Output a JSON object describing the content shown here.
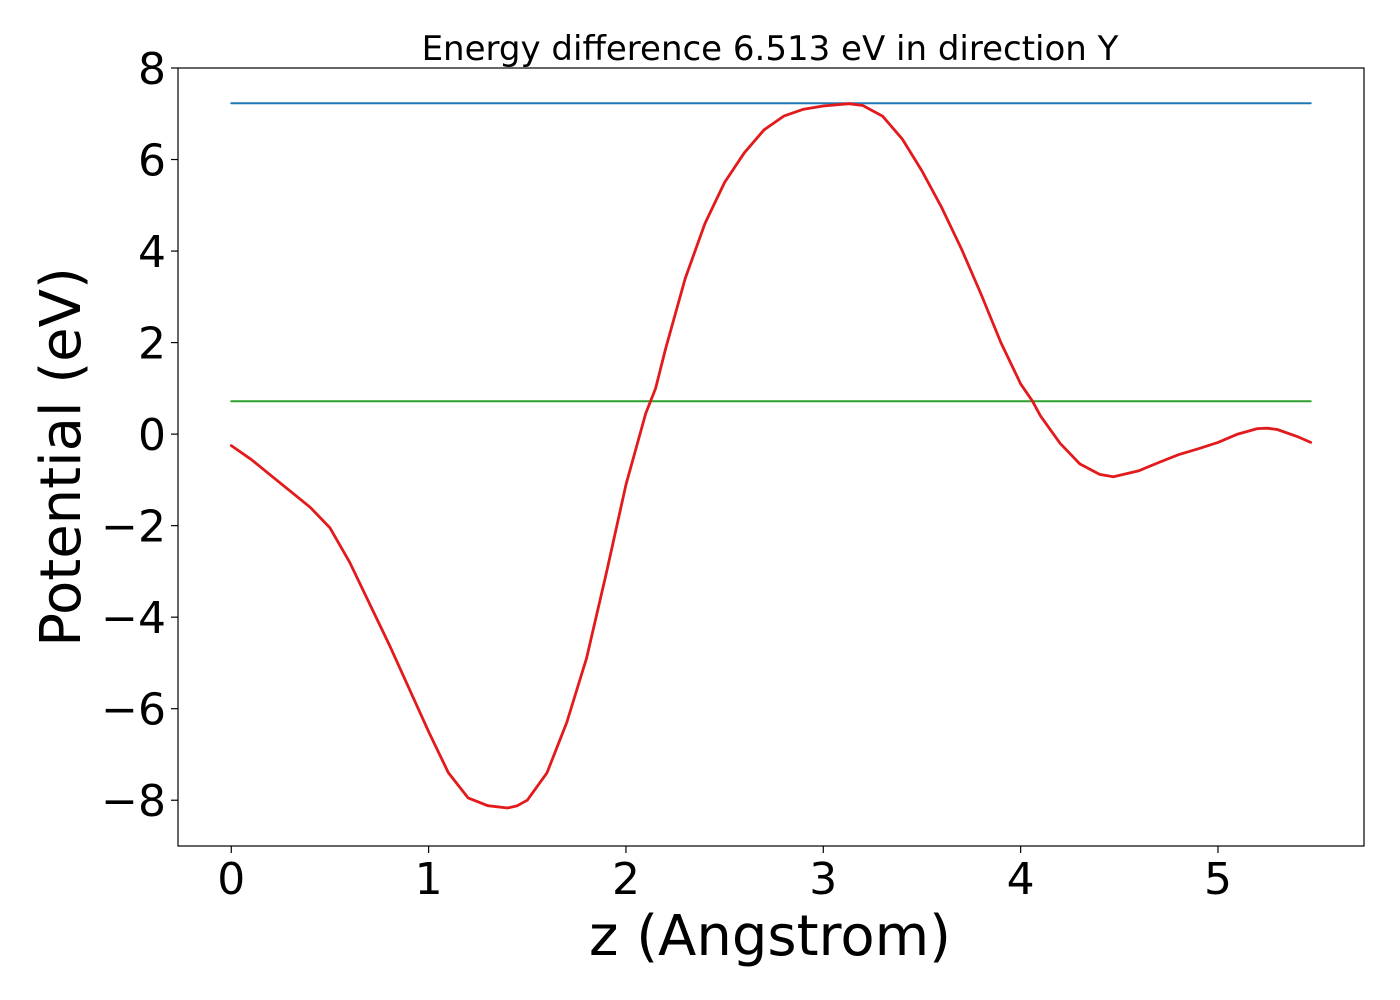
{
  "chart_data": {
    "type": "line",
    "title": "Energy difference 6.513 eV in direction Y",
    "xlabel": "z (Angstrom)",
    "ylabel": "Potential (eV)",
    "xlim": [
      -0.27,
      5.74
    ],
    "ylim": [
      -9.0,
      8.0
    ],
    "xticks": [
      0,
      1,
      2,
      3,
      4,
      5
    ],
    "xtick_labels": [
      "0",
      "1",
      "2",
      "3",
      "4",
      "5"
    ],
    "yticks": [
      -8,
      -6,
      -4,
      -2,
      0,
      2,
      4,
      6,
      8
    ],
    "ytick_labels": [
      "−8",
      "−6",
      "−4",
      "−2",
      "0",
      "2",
      "4",
      "6",
      "8"
    ],
    "grid": false,
    "series": [
      {
        "color": "#1f77b4",
        "x": [
          0,
          5.47
        ],
        "y": [
          7.23,
          7.23
        ]
      },
      {
        "color": "#2ca02c",
        "x": [
          0,
          5.47
        ],
        "y": [
          0.72,
          0.72
        ]
      },
      {
        "color": "#e31a1c",
        "x": [
          0.0,
          0.1,
          0.2,
          0.3,
          0.4,
          0.5,
          0.6,
          0.7,
          0.8,
          0.9,
          1.0,
          1.1,
          1.2,
          1.3,
          1.4,
          1.45,
          1.5,
          1.6,
          1.7,
          1.8,
          1.9,
          2.0,
          2.1,
          2.15,
          2.2,
          2.3,
          2.4,
          2.5,
          2.6,
          2.7,
          2.8,
          2.9,
          3.0,
          3.13,
          3.2,
          3.3,
          3.4,
          3.5,
          3.6,
          3.7,
          3.8,
          3.9,
          4.0,
          4.06,
          4.1,
          4.2,
          4.3,
          4.4,
          4.47,
          4.6,
          4.7,
          4.8,
          4.9,
          5.0,
          5.1,
          5.2,
          5.25,
          5.3,
          5.4,
          5.47
        ],
        "y": [
          -0.25,
          -0.55,
          -0.9,
          -1.25,
          -1.6,
          -2.05,
          -2.8,
          -3.7,
          -4.6,
          -5.55,
          -6.5,
          -7.4,
          -7.95,
          -8.12,
          -8.17,
          -8.12,
          -8.0,
          -7.4,
          -6.3,
          -4.9,
          -3.05,
          -1.1,
          0.45,
          1.0,
          1.85,
          3.4,
          4.6,
          5.5,
          6.15,
          6.65,
          6.95,
          7.1,
          7.17,
          7.22,
          7.18,
          6.95,
          6.45,
          5.75,
          4.95,
          4.05,
          3.05,
          2.0,
          1.1,
          0.72,
          0.4,
          -0.2,
          -0.65,
          -0.88,
          -0.93,
          -0.8,
          -0.62,
          -0.45,
          -0.32,
          -0.18,
          0.0,
          0.12,
          0.13,
          0.1,
          -0.05,
          -0.18
        ]
      }
    ]
  }
}
